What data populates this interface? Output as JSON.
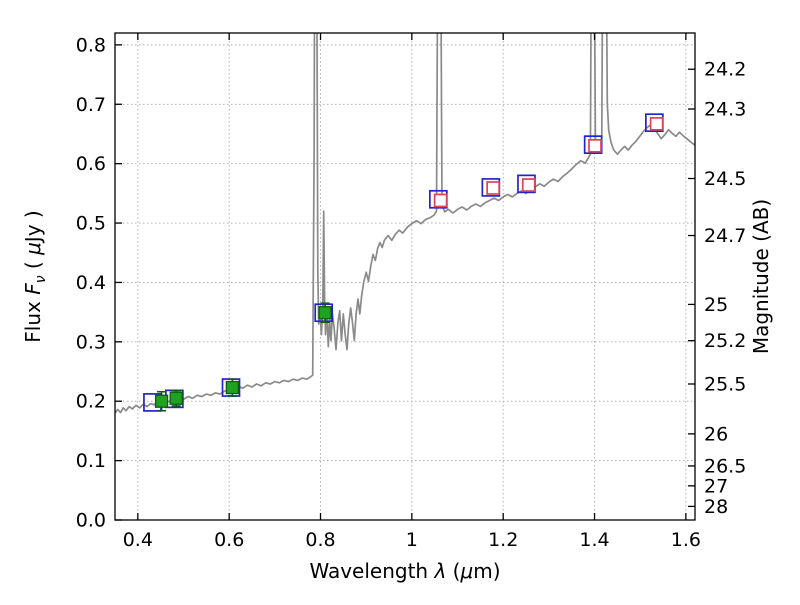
{
  "chart_data": {
    "type": "line",
    "title": "",
    "xlabel_parts": [
      {
        "t": "Wavelength  ",
        "i": false
      },
      {
        "t": "λ",
        "i": true
      },
      {
        "t": " (",
        "i": false
      },
      {
        "t": "μ",
        "i": true
      },
      {
        "t": "m)",
        "i": false
      }
    ],
    "ylabel_parts": [
      {
        "t": "Flux  ",
        "i": false
      },
      {
        "t": "F",
        "i": true
      },
      {
        "t": "ν",
        "i": true,
        "sub": true
      },
      {
        "t": "  ( ",
        "i": false
      },
      {
        "t": "μ",
        "i": true
      },
      {
        "t": "Jy )",
        "i": false
      }
    ],
    "y2label_parts": [
      {
        "t": "Magnitude (AB)",
        "i": false
      }
    ],
    "xlim": [
      0.35,
      1.62
    ],
    "ylim": [
      0.0,
      0.82
    ],
    "grid": true,
    "legend": false,
    "xticks": [
      {
        "value": 0.4,
        "label": "0.4"
      },
      {
        "value": 0.6,
        "label": "0.6"
      },
      {
        "value": 0.8,
        "label": "0.8"
      },
      {
        "value": 1.0,
        "label": "1"
      },
      {
        "value": 1.2,
        "label": "1.2"
      },
      {
        "value": 1.4,
        "label": "1.4"
      },
      {
        "value": 1.6,
        "label": "1.6"
      }
    ],
    "yticks": [
      {
        "value": 0.0,
        "label": "0.0"
      },
      {
        "value": 0.1,
        "label": "0.1"
      },
      {
        "value": 0.2,
        "label": "0.2"
      },
      {
        "value": 0.3,
        "label": "0.3"
      },
      {
        "value": 0.4,
        "label": "0.4"
      },
      {
        "value": 0.5,
        "label": "0.5"
      },
      {
        "value": 0.6,
        "label": "0.6"
      },
      {
        "value": 0.7,
        "label": "0.7"
      },
      {
        "value": 0.8,
        "label": "0.8"
      }
    ],
    "y2ticks": [
      {
        "flux": 0.759,
        "label": "24.2"
      },
      {
        "flux": 0.692,
        "label": "24.3"
      },
      {
        "flux": 0.575,
        "label": "24.5"
      },
      {
        "flux": 0.479,
        "label": "24.7"
      },
      {
        "flux": 0.363,
        "label": "25"
      },
      {
        "flux": 0.302,
        "label": "25.2"
      },
      {
        "flux": 0.229,
        "label": "25.5"
      },
      {
        "flux": 0.145,
        "label": "26"
      },
      {
        "flux": 0.091,
        "label": "26.5"
      },
      {
        "flux": 0.0575,
        "label": "27"
      },
      {
        "flux": 0.0229,
        "label": "28"
      }
    ],
    "colors": {
      "spectrum": "#8a8a8a",
      "model_squares": "#2424cc",
      "observed_fill": "#21a121",
      "observed_edge": "#0b5e0b",
      "fit_squares": "#dd4455",
      "grid": "#a8a8a8",
      "axis": "#000000"
    },
    "series": [
      {
        "name": "model-spectrum",
        "type": "line",
        "points": [
          [
            0.35,
            0.18
          ],
          [
            0.356,
            0.186
          ],
          [
            0.362,
            0.181
          ],
          [
            0.368,
            0.189
          ],
          [
            0.374,
            0.184
          ],
          [
            0.381,
            0.191
          ],
          [
            0.388,
            0.187
          ],
          [
            0.396,
            0.193
          ],
          [
            0.404,
            0.189
          ],
          [
            0.412,
            0.195
          ],
          [
            0.42,
            0.191
          ],
          [
            0.428,
            0.196
          ],
          [
            0.436,
            0.194
          ],
          [
            0.444,
            0.199
          ],
          [
            0.452,
            0.196
          ],
          [
            0.46,
            0.202
          ],
          [
            0.468,
            0.199
          ],
          [
            0.476,
            0.204
          ],
          [
            0.484,
            0.201
          ],
          [
            0.492,
            0.206
          ],
          [
            0.5,
            0.203
          ],
          [
            0.51,
            0.208
          ],
          [
            0.52,
            0.205
          ],
          [
            0.53,
            0.21
          ],
          [
            0.54,
            0.208
          ],
          [
            0.55,
            0.212
          ],
          [
            0.56,
            0.21
          ],
          [
            0.57,
            0.214
          ],
          [
            0.58,
            0.212
          ],
          [
            0.59,
            0.217
          ],
          [
            0.6,
            0.219
          ],
          [
            0.61,
            0.222
          ],
          [
            0.62,
            0.225
          ],
          [
            0.63,
            0.222
          ],
          [
            0.64,
            0.227
          ],
          [
            0.65,
            0.224
          ],
          [
            0.66,
            0.229
          ],
          [
            0.67,
            0.226
          ],
          [
            0.68,
            0.231
          ],
          [
            0.69,
            0.229
          ],
          [
            0.7,
            0.233
          ],
          [
            0.71,
            0.231
          ],
          [
            0.72,
            0.235
          ],
          [
            0.73,
            0.233
          ],
          [
            0.74,
            0.237
          ],
          [
            0.75,
            0.235
          ],
          [
            0.76,
            0.239
          ],
          [
            0.77,
            0.237
          ],
          [
            0.778,
            0.241
          ],
          [
            0.783,
            0.244
          ],
          [
            0.786,
            0.62
          ],
          [
            0.788,
            1.15
          ],
          [
            0.791,
            1.15
          ],
          [
            0.794,
            0.42
          ],
          [
            0.796,
            0.33
          ],
          [
            0.799,
            0.35
          ],
          [
            0.802,
            0.312
          ],
          [
            0.805,
            0.358
          ],
          [
            0.807,
            0.52
          ],
          [
            0.809,
            0.372
          ],
          [
            0.811,
            0.312
          ],
          [
            0.814,
            0.347
          ],
          [
            0.817,
            0.292
          ],
          [
            0.82,
            0.337
          ],
          [
            0.823,
            0.302
          ],
          [
            0.826,
            0.347
          ],
          [
            0.83,
            0.322
          ],
          [
            0.834,
            0.287
          ],
          [
            0.838,
            0.332
          ],
          [
            0.842,
            0.352
          ],
          [
            0.846,
            0.302
          ],
          [
            0.85,
            0.347
          ],
          [
            0.854,
            0.312
          ],
          [
            0.858,
            0.287
          ],
          [
            0.862,
            0.332
          ],
          [
            0.866,
            0.357
          ],
          [
            0.87,
            0.332
          ],
          [
            0.874,
            0.302
          ],
          [
            0.878,
            0.347
          ],
          [
            0.882,
            0.372
          ],
          [
            0.886,
            0.347
          ],
          [
            0.89,
            0.377
          ],
          [
            0.895,
            0.402
          ],
          [
            0.9,
            0.417
          ],
          [
            0.905,
            0.402
          ],
          [
            0.91,
            0.427
          ],
          [
            0.915,
            0.447
          ],
          [
            0.92,
            0.437
          ],
          [
            0.925,
            0.457
          ],
          [
            0.93,
            0.467
          ],
          [
            0.935,
            0.459
          ],
          [
            0.94,
            0.471
          ],
          [
            0.948,
            0.479
          ],
          [
            0.956,
            0.471
          ],
          [
            0.964,
            0.481
          ],
          [
            0.972,
            0.488
          ],
          [
            0.98,
            0.483
          ],
          [
            0.99,
            0.493
          ],
          [
            1.0,
            0.499
          ],
          [
            1.01,
            0.504
          ],
          [
            1.02,
            0.499
          ],
          [
            1.03,
            0.506
          ],
          [
            1.04,
            0.509
          ],
          [
            1.048,
            0.513
          ],
          [
            1.054,
            0.52
          ],
          [
            1.058,
            1.15
          ],
          [
            1.062,
            1.15
          ],
          [
            1.066,
            0.531
          ],
          [
            1.072,
            0.519
          ],
          [
            1.08,
            0.523
          ],
          [
            1.09,
            0.517
          ],
          [
            1.1,
            0.523
          ],
          [
            1.11,
            0.527
          ],
          [
            1.12,
            0.522
          ],
          [
            1.13,
            0.528
          ],
          [
            1.14,
            0.532
          ],
          [
            1.15,
            0.528
          ],
          [
            1.16,
            0.534
          ],
          [
            1.17,
            0.538
          ],
          [
            1.18,
            0.542
          ],
          [
            1.19,
            0.538
          ],
          [
            1.2,
            0.544
          ],
          [
            1.21,
            0.548
          ],
          [
            1.22,
            0.544
          ],
          [
            1.23,
            0.55
          ],
          [
            1.24,
            0.554
          ],
          [
            1.25,
            0.55
          ],
          [
            1.26,
            0.556
          ],
          [
            1.27,
            0.561
          ],
          [
            1.28,
            0.566
          ],
          [
            1.29,
            0.562
          ],
          [
            1.3,
            0.569
          ],
          [
            1.31,
            0.574
          ],
          [
            1.32,
            0.57
          ],
          [
            1.33,
            0.578
          ],
          [
            1.34,
            0.584
          ],
          [
            1.35,
            0.591
          ],
          [
            1.36,
            0.599
          ],
          [
            1.37,
            0.605
          ],
          [
            1.38,
            0.601
          ],
          [
            1.386,
            0.609
          ],
          [
            1.391,
            0.616
          ],
          [
            1.394,
            1.15
          ],
          [
            1.398,
            1.15
          ],
          [
            1.402,
            0.641
          ],
          [
            1.407,
            0.626
          ],
          [
            1.412,
            0.619
          ],
          [
            1.416,
            0.646
          ],
          [
            1.419,
            1.15
          ],
          [
            1.424,
            1.15
          ],
          [
            1.428,
            0.701
          ],
          [
            1.431,
            0.656
          ],
          [
            1.436,
            0.636
          ],
          [
            1.442,
            0.623
          ],
          [
            1.45,
            0.616
          ],
          [
            1.458,
            0.623
          ],
          [
            1.466,
            0.629
          ],
          [
            1.474,
            0.623
          ],
          [
            1.482,
            0.631
          ],
          [
            1.49,
            0.637
          ],
          [
            1.498,
            0.645
          ],
          [
            1.506,
            0.653
          ],
          [
            1.514,
            0.66
          ],
          [
            1.522,
            0.665
          ],
          [
            1.53,
            0.661
          ],
          [
            1.538,
            0.651
          ],
          [
            1.546,
            0.642
          ],
          [
            1.554,
            0.649
          ],
          [
            1.562,
            0.657
          ],
          [
            1.57,
            0.651
          ],
          [
            1.578,
            0.646
          ],
          [
            1.586,
            0.653
          ],
          [
            1.594,
            0.647
          ],
          [
            1.602,
            0.642
          ],
          [
            1.61,
            0.637
          ],
          [
            1.62,
            0.631
          ]
        ]
      }
    ],
    "photometry": {
      "model": {
        "marker": "open-square",
        "size": 17,
        "points": [
          [
            0.432,
            0.198
          ],
          [
            0.48,
            0.204
          ],
          [
            0.604,
            0.223
          ],
          [
            0.807,
            0.349
          ],
          [
            1.058,
            0.54
          ],
          [
            1.173,
            0.56
          ],
          [
            1.251,
            0.566
          ],
          [
            1.397,
            0.632
          ],
          [
            1.531,
            0.669
          ]
        ]
      },
      "observed": {
        "marker": "filled-square",
        "size": 12,
        "points": [
          {
            "x": 0.452,
            "y": 0.2,
            "err": 0.016
          },
          {
            "x": 0.484,
            "y": 0.205,
            "err": 0.013
          },
          {
            "x": 0.607,
            "y": 0.223,
            "err": 0.014
          },
          {
            "x": 0.81,
            "y": 0.349,
            "err": 0.016
          }
        ]
      },
      "fit": {
        "marker": "open-square",
        "size": 12,
        "points": [
          {
            "x": 1.063,
            "y": 0.538,
            "err": 0.01
          },
          {
            "x": 1.178,
            "y": 0.559,
            "err": 0.009
          },
          {
            "x": 1.256,
            "y": 0.564,
            "err": 0.009
          },
          {
            "x": 1.401,
            "y": 0.63,
            "err": 0.009
          },
          {
            "x": 1.536,
            "y": 0.667,
            "err": 0.009
          }
        ]
      }
    }
  }
}
